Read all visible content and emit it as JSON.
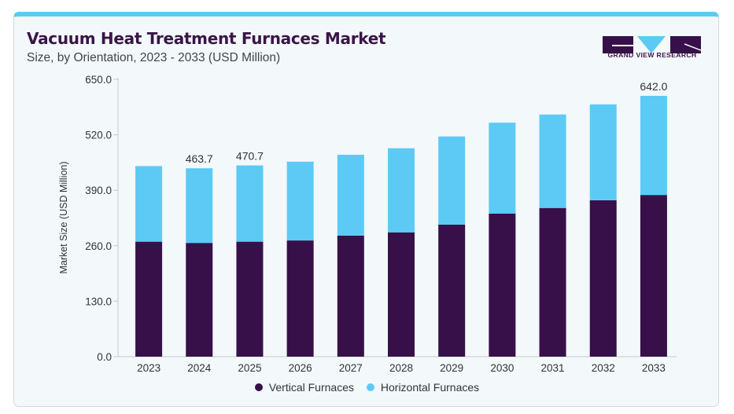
{
  "header": {
    "title": "Vacuum Heat Treatment Furnaces Market",
    "subtitle": "Size, by Orientation, 2023 - 2033 (USD Million)"
  },
  "brand": {
    "name": "GRAND VIEW RESEARCH",
    "colors": {
      "primary": "#37104a",
      "accent": "#5ccaf5"
    }
  },
  "chart_data": {
    "type": "bar",
    "stacked": true,
    "title": "Vacuum Heat Treatment Furnaces Market",
    "subtitle": "Size, by Orientation, 2023 - 2033 (USD Million)",
    "xlabel": "",
    "ylabel": "Market Size (USD Million)",
    "ylim": [
      0,
      650
    ],
    "yticks": [
      "0.0",
      "130.0",
      "260.0",
      "390.0",
      "520.0",
      "650.0"
    ],
    "categories": [
      "2023",
      "2024",
      "2025",
      "2026",
      "2027",
      "2028",
      "2029",
      "2030",
      "2031",
      "2032",
      "2033"
    ],
    "series": [
      {
        "name": "Vertical Furnaces",
        "color": "#37104a",
        "values": [
          283,
          280,
          283,
          286,
          298,
          306,
          325,
          352,
          366,
          385,
          398
        ]
      },
      {
        "name": "Horizontal Furnaces",
        "color": "#5ccaf5",
        "values": [
          186,
          183.7,
          187.7,
          194,
          199,
          207,
          217,
          224,
          230,
          236,
          244
        ]
      }
    ],
    "data_labels": [
      {
        "category": "2024",
        "text": "463.7"
      },
      {
        "category": "2025",
        "text": "470.7"
      },
      {
        "category": "2033",
        "text": "642.0"
      }
    ],
    "grid": false,
    "legend_position": "bottom"
  }
}
